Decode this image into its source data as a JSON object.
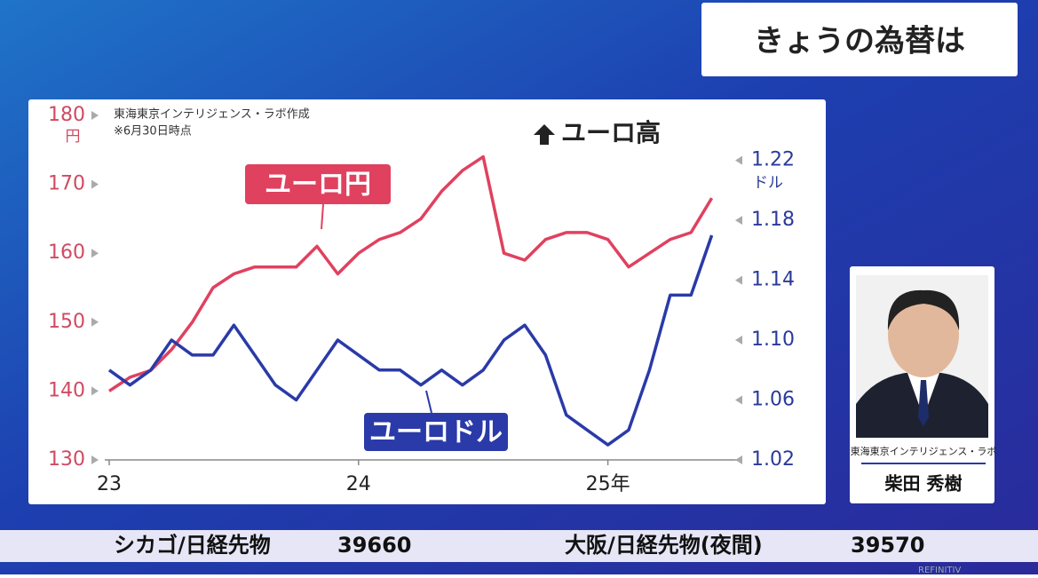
{
  "header": {
    "title": "きょうの為替は"
  },
  "chart_data": {
    "type": "line",
    "notes": [
      "東海東京インテリジェンス・ラボ作成",
      "※6月30日時点"
    ],
    "annotation": "ユーロ高",
    "y_unit": "円",
    "y2_unit": "ドル",
    "categories": [
      "23",
      null,
      null,
      null,
      null,
      null,
      null,
      null,
      null,
      null,
      null,
      null,
      "24",
      null,
      null,
      null,
      null,
      null,
      null,
      null,
      null,
      null,
      null,
      null,
      "25年",
      null,
      null,
      null,
      null,
      null
    ],
    "series": [
      {
        "name": "ユーロ円",
        "color": "#e0415f",
        "axis": "y",
        "values": [
          140,
          142,
          143,
          146,
          150,
          155,
          157,
          158,
          158,
          158,
          161,
          157,
          160,
          162,
          163,
          165,
          169,
          172,
          174,
          160,
          159,
          162,
          163,
          163,
          162,
          158,
          160,
          162,
          163,
          168
        ]
      },
      {
        "name": "ユーロドル",
        "color": "#2a3aa8",
        "axis": "y2",
        "values": [
          1.08,
          1.07,
          1.08,
          1.1,
          1.09,
          1.09,
          1.11,
          1.09,
          1.07,
          1.06,
          1.08,
          1.1,
          1.09,
          1.08,
          1.08,
          1.07,
          1.08,
          1.07,
          1.08,
          1.1,
          1.11,
          1.09,
          1.05,
          1.04,
          1.03,
          1.04,
          1.08,
          1.13,
          1.13,
          1.17
        ]
      }
    ],
    "ylim": [
      130,
      180
    ],
    "yticks": [
      130,
      140,
      150,
      160,
      170,
      180
    ],
    "y2lim": [
      1.02,
      1.25
    ],
    "y2ticks": [
      1.02,
      1.06,
      {
        "value": 1.1,
        "label": "1.10"
      },
      1.14,
      1.18,
      1.22
    ]
  },
  "presenter": {
    "affiliation": "東海東京インテリジェンス・ラボ",
    "name": "柴田 秀樹"
  },
  "ticker": [
    {
      "label": "シカゴ/日経先物",
      "value": "39660"
    },
    {
      "label": "大阪/日経先物(夜間)",
      "value": "39570"
    }
  ],
  "logo": "REFINITIV"
}
